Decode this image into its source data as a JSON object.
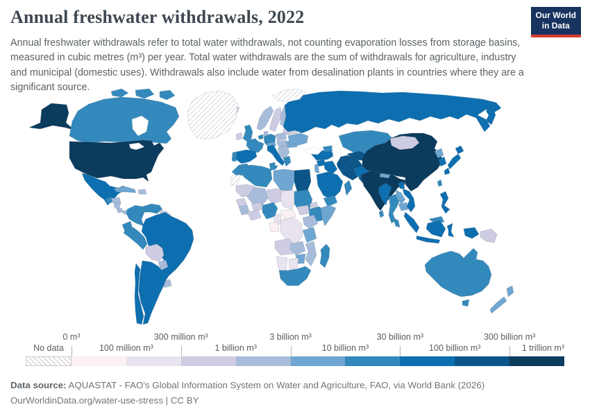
{
  "header": {
    "title": "Annual freshwater withdrawals, 2022",
    "logo_line1": "Our World",
    "logo_line2": "in Data",
    "logo_bg": "#18335f",
    "logo_accent": "#d93b32"
  },
  "subtitle": "Annual freshwater withdrawals refer to total water withdrawals, not counting evaporation losses from storage basins, measured in cubic metres (m³) per year. Total water withdrawals are the sum of withdrawals for agriculture, industry and municipal (domestic uses). Withdrawals also include water from desalination plants in countries where they are a significant source.",
  "chart_data": {
    "type": "heatmap",
    "variant": "choropleth-world-map",
    "title": "Annual freshwater withdrawals, 2022",
    "unit": "m³ per year",
    "scale": "binned, roughly logarithmic",
    "legend": {
      "no_data_label": "No data",
      "bin_edges": [
        "0 m³",
        "100 million m³",
        "300 million m³",
        "1 billion m³",
        "3 billion m³",
        "10 billion m³",
        "30 billion m³",
        "100 billion m³",
        "300 billion m³",
        "1 trillion m³"
      ],
      "bin_colors": [
        "#fbf0f3",
        "#e8e3ef",
        "#cdcce2",
        "#a7bcda",
        "#6fa6d1",
        "#3389bc",
        "#0d6fb0",
        "#0b5589",
        "#0b3b5d"
      ],
      "position": "bottom"
    },
    "country_bins": {
      "United States": 9,
      "Canada": 6,
      "Greenland": "no_data",
      "Mexico": 7,
      "Guatemala": 6,
      "Honduras": 4,
      "Nicaragua": 4,
      "Costa Rica": 4,
      "Panama": 4,
      "Cuba": 5,
      "Haiti-Dominican Republic": 4,
      "Colombia": 6,
      "Venezuela": 6,
      "Guyana-Suriname": 3,
      "French Guiana": 2,
      "Ecuador": 6,
      "Peru": 6,
      "Brazil": 7,
      "Bolivia": 3,
      "Paraguay": 4,
      "Uruguay": 4,
      "Argentina": 7,
      "Chile": 7,
      "Iceland": 3,
      "Norway": 4,
      "Sweden": 3,
      "Finland": 4,
      "Baltic states": 3,
      "United Kingdom": 6,
      "Ireland": 3,
      "Denmark": 4,
      "Germany": 6,
      "Netherlands-Belgium": 6,
      "France": 6,
      "Spain": 7,
      "Portugal": 6,
      "Italy": 7,
      "Switzerland-Austria": 5,
      "Poland": 4,
      "Czechia-Hungary": 4,
      "Balkans": 4,
      "Greece": 6,
      "Romania": 5,
      "Ukraine": 5,
      "Belarus": 3,
      "Russia": 7,
      "Svalbard": "no_data",
      "Turkey": 7,
      "Georgia-Azerbaijan": 6,
      "Syria": 7,
      "Iraq": 7,
      "Israel-Jordan": 5,
      "Saudi Arabia": 7,
      "Yemen": 6,
      "Oman": 6,
      "Iran": 8,
      "Kazakhstan": 6,
      "Uzbekistan": 8,
      "Turkmenistan": 8,
      "Kyrgyzstan-Tajikistan": 4,
      "Afghanistan": 7,
      "Pakistan": 8,
      "India": 9,
      "Nepal": 5,
      "Bangladesh": 7,
      "Sri Lanka": 6,
      "Mongolia": 3,
      "China": 9,
      "North Korea": 5,
      "South Korea": 7,
      "Japan": 7,
      "Taiwan": 6,
      "Myanmar": 7,
      "Thailand": 6,
      "Laos": 5,
      "Cambodia": 5,
      "Vietnam": 7,
      "Malaysia": 6,
      "Indonesia": 7,
      "Philippines": 7,
      "Papua New Guinea": 3,
      "Australia": 6,
      "New Zealand": 5,
      "Morocco": 6,
      "Western Sahara": "no_data",
      "Algeria": 6,
      "Tunisia": 6,
      "Libya": 5,
      "Egypt": 8,
      "Mauritania": 3,
      "Mali": 4,
      "Niger": 3,
      "Chad": 2,
      "Sudan": 6,
      "Eritrea": 3,
      "Ethiopia": 6,
      "Somalia": 5,
      "South Sudan": 3,
      "Senegal": 3,
      "Guinea": 4,
      "Burkina Faso": 3,
      "Ivory Coast-Ghana": 3,
      "Nigeria": 6,
      "Cameroon": 2,
      "Central African Republic": 1,
      "Gabon-Congo": 1,
      "DR Congo": 2,
      "Uganda-Kenya": 4,
      "Tanzania": 5,
      "Angola": 3,
      "Zambia": 4,
      "Mozambique": 4,
      "Zimbabwe": 5,
      "Botswana": 2,
      "Namibia": 2,
      "South Africa": 6,
      "Madagascar": 6
    }
  },
  "footer": {
    "source_label": "Data source:",
    "source_text": " AQUASTAT - FAO's Global Information System on Water and Agriculture, FAO, via World Bank (2026)",
    "link": "OurWorldinData.org/water-use-stress",
    "separator": " | ",
    "license": "CC BY"
  }
}
